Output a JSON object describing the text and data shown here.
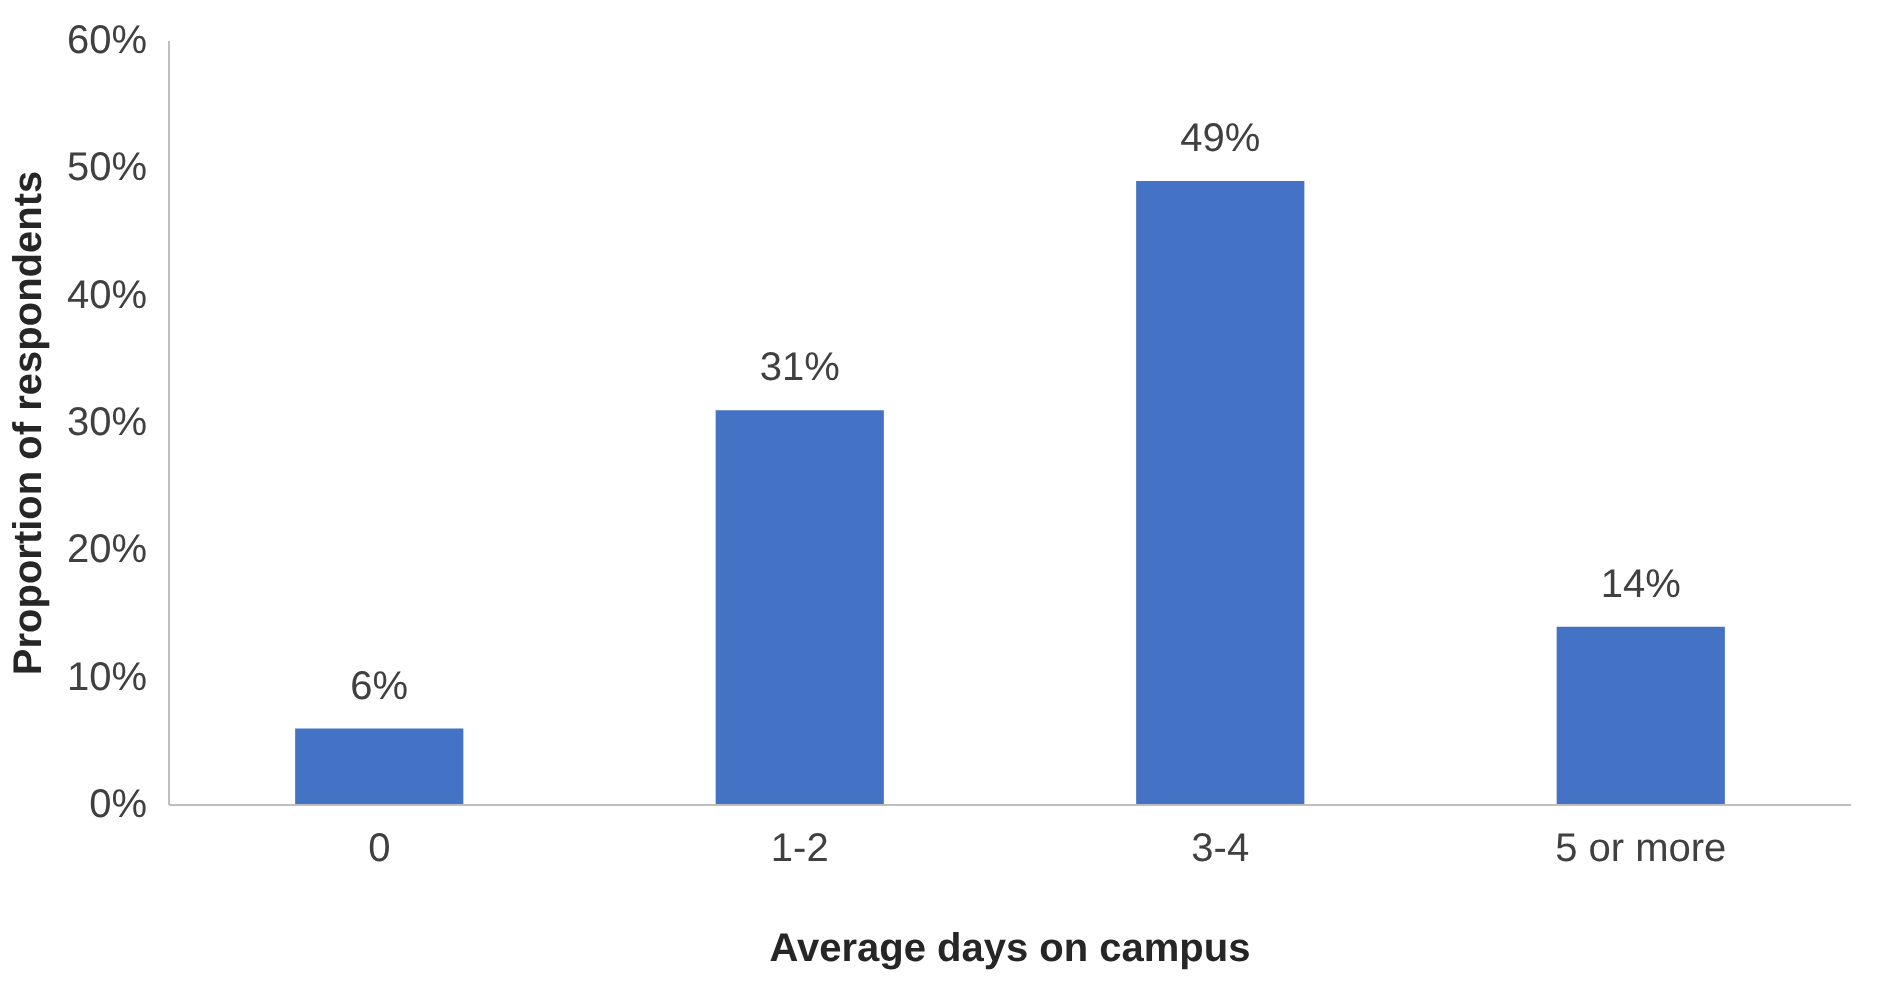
{
  "chart_data": {
    "type": "bar",
    "xlabel": "Average days on campus",
    "ylabel": "Proportion of respondents",
    "categories": [
      "0",
      "1-2",
      "3-4",
      "5 or more"
    ],
    "values": [
      6,
      31,
      49,
      14
    ],
    "value_labels": [
      "6%",
      "31%",
      "49%",
      "14%"
    ],
    "color": "#4472c4",
    "ylim": [
      0,
      60
    ],
    "yticks": [
      {
        "value": 0,
        "label": "0%"
      },
      {
        "value": 10,
        "label": "10%"
      },
      {
        "value": 20,
        "label": "20%"
      },
      {
        "value": 30,
        "label": "30%"
      },
      {
        "value": 40,
        "label": "40%"
      },
      {
        "value": 50,
        "label": "50%"
      },
      {
        "value": 60,
        "label": "60%"
      }
    ],
    "grid": false
  }
}
